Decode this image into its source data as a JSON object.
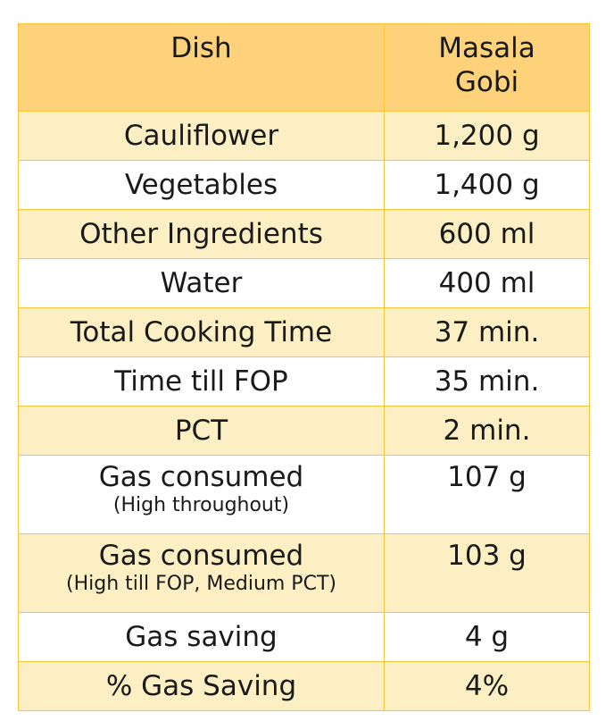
{
  "header": {
    "dish_label": "Dish",
    "col2_line1": "Masala",
    "col2_line2": "Gobi"
  },
  "rows": [
    {
      "label": "Cauliflower",
      "value": "1,200 g"
    },
    {
      "label": "Vegetables",
      "value": "1,400 g"
    },
    {
      "label": "Other Ingredients",
      "value": "600 ml"
    },
    {
      "label": "Water",
      "value": "400 ml"
    },
    {
      "label": "Total Cooking Time",
      "value": "37 min."
    },
    {
      "label": "Time till FOP",
      "value": "35 min."
    },
    {
      "label": "PCT",
      "value": "2 min."
    },
    {
      "label": "Gas consumed",
      "sublabel": "(High throughout)",
      "value": "107 g"
    },
    {
      "label": "Gas consumed",
      "sublabel": "(High till FOP, Medium PCT)",
      "value": "103 g"
    },
    {
      "label": "Gas saving",
      "value": "4 g"
    },
    {
      "label": "% Gas Saving",
      "value": "4%"
    }
  ],
  "colors": {
    "header_bg": "#fdd27a",
    "band_bg": "#fdefc4",
    "border": "#f5c53a"
  }
}
